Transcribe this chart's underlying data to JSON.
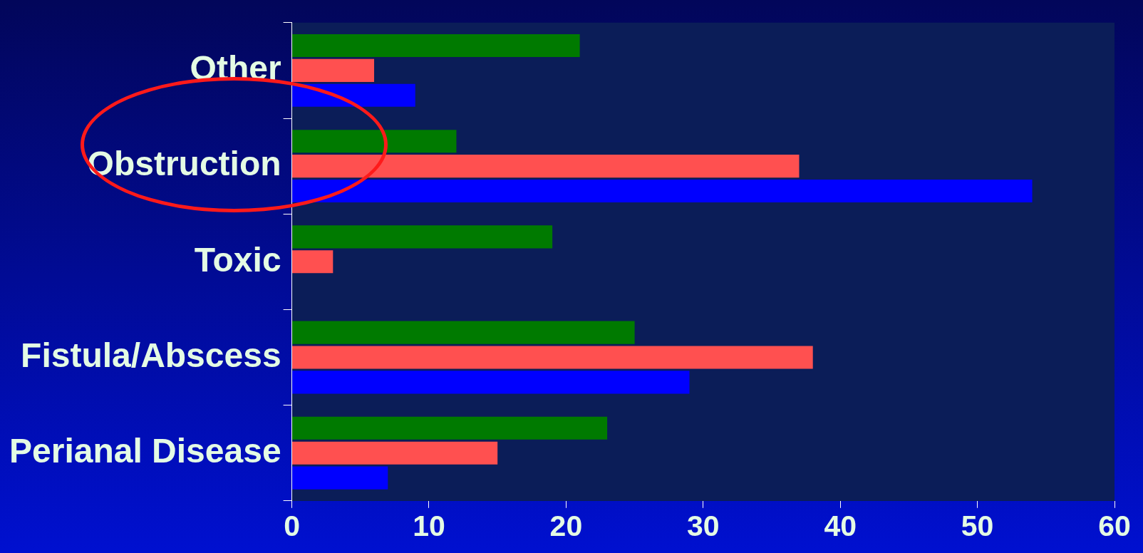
{
  "chart_data": {
    "type": "bar",
    "orientation": "horizontal",
    "categories": [
      "Other",
      "Obstruction",
      "Toxic",
      "Fistula/Abscess",
      "Perianal Disease"
    ],
    "series": [
      {
        "color": "#007a00",
        "values": [
          21,
          12,
          19,
          25,
          23
        ]
      },
      {
        "color": "#ff5050",
        "values": [
          6,
          37,
          3,
          38,
          15
        ]
      },
      {
        "color": "#0000ff",
        "values": [
          9,
          54,
          0,
          29,
          7
        ]
      }
    ],
    "xlim": [
      0,
      60
    ],
    "xticks": [
      0,
      10,
      20,
      30,
      40,
      50,
      60
    ],
    "grid": false,
    "legend": false
  }
}
